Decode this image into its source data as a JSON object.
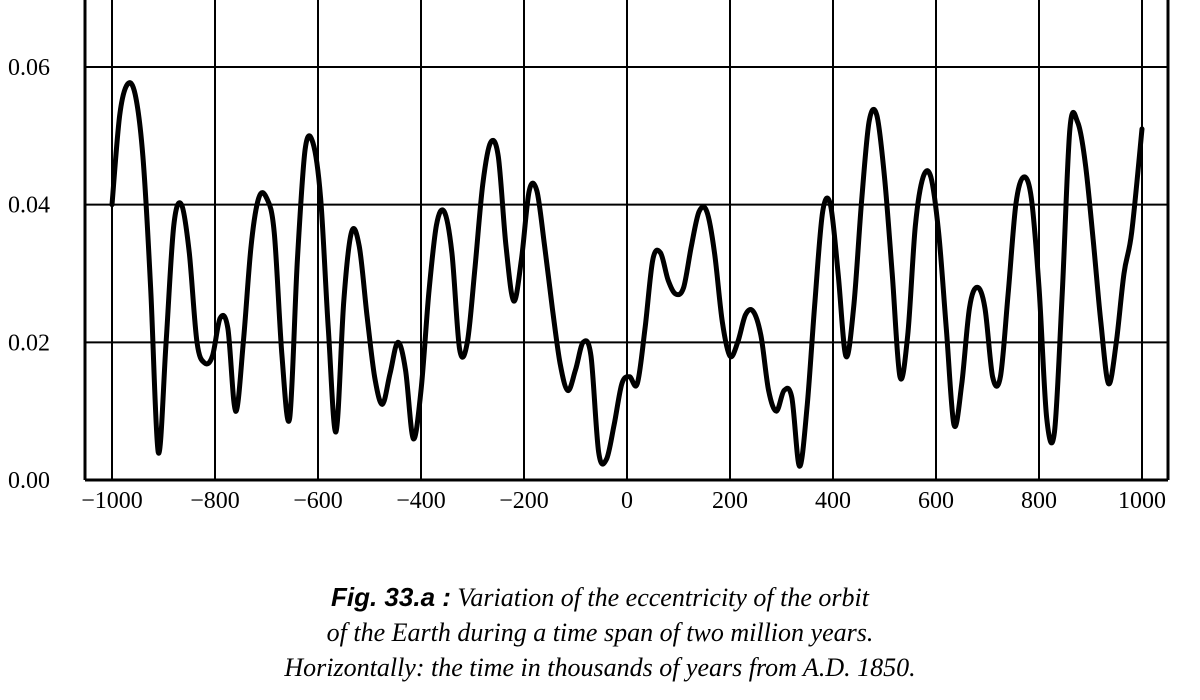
{
  "chart_data": {
    "type": "line",
    "title": "",
    "xlabel": "",
    "ylabel": "",
    "xlim": [
      -1000,
      1000
    ],
    "ylim": [
      0,
      0.07
    ],
    "grid": true,
    "x_ticks": [
      -1000,
      -800,
      -600,
      -400,
      -200,
      0,
      200,
      400,
      600,
      800,
      1000
    ],
    "x_tick_labels": [
      "−1000",
      "−800",
      "−600",
      "−400",
      "−200",
      "0",
      "200",
      "400",
      "600",
      "800",
      "1000"
    ],
    "y_ticks": [
      0,
      0.02,
      0.04,
      0.06
    ],
    "y_tick_labels": [
      "0.00",
      "0.02",
      "0.04",
      "0.06"
    ],
    "series": [
      {
        "x": [
          -1000,
          -985,
          -970,
          -955,
          -940,
          -925,
          -910,
          -895,
          -880,
          -865,
          -850,
          -835,
          -820,
          -805,
          -790,
          -775,
          -760,
          -745,
          -730,
          -715,
          -700,
          -685,
          -670,
          -655,
          -640,
          -625,
          -610,
          -595,
          -580,
          -565,
          -550,
          -535,
          -520,
          -505,
          -490,
          -475,
          -460,
          -445,
          -430,
          -415,
          -400,
          -385,
          -370,
          -355,
          -340,
          -325,
          -310,
          -295,
          -280,
          -265,
          -250,
          -235,
          -220,
          -205,
          -190,
          -175,
          -160,
          -145,
          -130,
          -115,
          -100,
          -85,
          -70,
          -55,
          -40,
          -25,
          -10,
          5,
          20,
          35,
          50,
          65,
          80,
          95,
          110,
          125,
          140,
          155,
          170,
          185,
          200,
          215,
          230,
          245,
          260,
          275,
          290,
          305,
          320,
          335,
          350,
          365,
          380,
          395,
          410,
          425,
          440,
          455,
          470,
          485,
          500,
          515,
          530,
          545,
          560,
          575,
          590,
          605,
          620,
          635,
          650,
          665,
          680,
          695,
          710,
          725,
          740,
          755,
          770,
          785,
          800,
          815,
          830,
          845,
          860,
          875,
          890,
          905,
          920,
          935,
          950,
          965,
          980,
          1000
        ],
        "y": [
          0.04,
          0.053,
          0.0575,
          0.056,
          0.047,
          0.028,
          0.004,
          0.02,
          0.037,
          0.04,
          0.033,
          0.02,
          0.017,
          0.018,
          0.0235,
          0.022,
          0.01,
          0.02,
          0.034,
          0.041,
          0.041,
          0.036,
          0.018,
          0.009,
          0.032,
          0.048,
          0.049,
          0.041,
          0.022,
          0.007,
          0.026,
          0.036,
          0.034,
          0.024,
          0.015,
          0.011,
          0.0155,
          0.02,
          0.016,
          0.006,
          0.013,
          0.027,
          0.037,
          0.039,
          0.033,
          0.019,
          0.02,
          0.031,
          0.043,
          0.049,
          0.047,
          0.034,
          0.026,
          0.032,
          0.042,
          0.042,
          0.034,
          0.025,
          0.017,
          0.013,
          0.016,
          0.02,
          0.018,
          0.004,
          0.003,
          0.008,
          0.014,
          0.015,
          0.014,
          0.022,
          0.032,
          0.033,
          0.029,
          0.027,
          0.028,
          0.034,
          0.039,
          0.039,
          0.033,
          0.023,
          0.018,
          0.02,
          0.024,
          0.0245,
          0.021,
          0.013,
          0.01,
          0.013,
          0.012,
          0.002,
          0.011,
          0.026,
          0.039,
          0.04,
          0.03,
          0.018,
          0.025,
          0.04,
          0.052,
          0.053,
          0.044,
          0.03,
          0.015,
          0.021,
          0.037,
          0.044,
          0.044,
          0.036,
          0.022,
          0.008,
          0.014,
          0.025,
          0.028,
          0.025,
          0.015,
          0.015,
          0.027,
          0.04,
          0.044,
          0.041,
          0.028,
          0.009,
          0.007,
          0.027,
          0.051,
          0.052,
          0.046,
          0.035,
          0.023,
          0.014,
          0.02,
          0.03,
          0.036,
          0.051
        ]
      }
    ],
    "line_color": "#000000"
  },
  "caption": {
    "fig_label": "Fig. 33.a :",
    "line1_rest": " Variation of the eccentricity of the orbit",
    "line2": "of the Earth during a time span of two million years.",
    "line3": "Horizontally: the time in thousands of years from A.D. 1850."
  }
}
